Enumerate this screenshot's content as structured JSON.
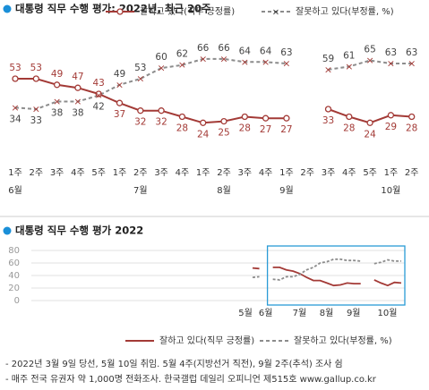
{
  "chart_data": [
    {
      "type": "line",
      "title": "대통령 직무 수행 평가: 2022년, 최근 20주",
      "categories": [
        "1주",
        "2주",
        "3주",
        "4주",
        "5주",
        "1주",
        "2주",
        "3주",
        "4주",
        "1주",
        "2주",
        "3주",
        "4주",
        "1주",
        "2주",
        "3주",
        "4주",
        "5주",
        "1주",
        "2주"
      ],
      "month_labels": [
        "6월",
        null,
        null,
        null,
        null,
        null,
        "7월",
        null,
        null,
        null,
        "8월",
        null,
        null,
        "9월",
        null,
        null,
        null,
        null,
        "10월",
        null
      ],
      "series": [
        {
          "name": "잘하고 있다(직무 긍정률)",
          "color": "#a33a36",
          "values": [
            53,
            53,
            49,
            47,
            43,
            37,
            32,
            32,
            28,
            24,
            25,
            28,
            27,
            27,
            null,
            33,
            28,
            24,
            29,
            28
          ]
        },
        {
          "name": "잘못하고 있다(부정률, %)",
          "color": "#8c8c8c",
          "values": [
            34,
            33,
            38,
            38,
            42,
            49,
            53,
            60,
            62,
            66,
            66,
            64,
            64,
            63,
            null,
            59,
            61,
            65,
            63,
            63
          ]
        }
      ],
      "ylim": [
        15,
        75
      ]
    },
    {
      "type": "line",
      "title": "대통령 직무 수행 평가 2022",
      "categories": [
        "5월",
        null,
        null,
        "6월",
        null,
        null,
        null,
        null,
        "7월",
        null,
        null,
        null,
        "8월",
        null,
        null,
        null,
        "9월",
        null,
        null,
        null,
        null,
        "10월",
        null
      ],
      "series": [
        {
          "name": "잘하고 있다(직무 긍정률)",
          "color": "#a33a36",
          "values": [
            52,
            51,
            null,
            53,
            53,
            49,
            47,
            43,
            37,
            32,
            32,
            28,
            24,
            25,
            28,
            27,
            27,
            null,
            33,
            28,
            24,
            29,
            28
          ]
        },
        {
          "name": "잘못하고 있다(부정률, %)",
          "color": "#8c8c8c",
          "values": [
            37,
            38,
            null,
            34,
            33,
            38,
            38,
            42,
            49,
            53,
            60,
            62,
            66,
            66,
            64,
            64,
            63,
            null,
            59,
            61,
            65,
            63,
            63
          ]
        }
      ],
      "ylim": [
        0,
        80
      ],
      "yticks": [
        0,
        20,
        40,
        60,
        80
      ],
      "grid": true
    }
  ],
  "footnotes": [
    "- 2022년 3월 9일 당선, 5월 10일 취임. 5월 4주(지방선거 직전), 9월 2주(추석) 조사 쉼",
    "- 매주 전국 유권자 약 1,000명 전화조사. 한국갤럽 데일리 오피니언 제515호 www.gallup.co.kr"
  ]
}
